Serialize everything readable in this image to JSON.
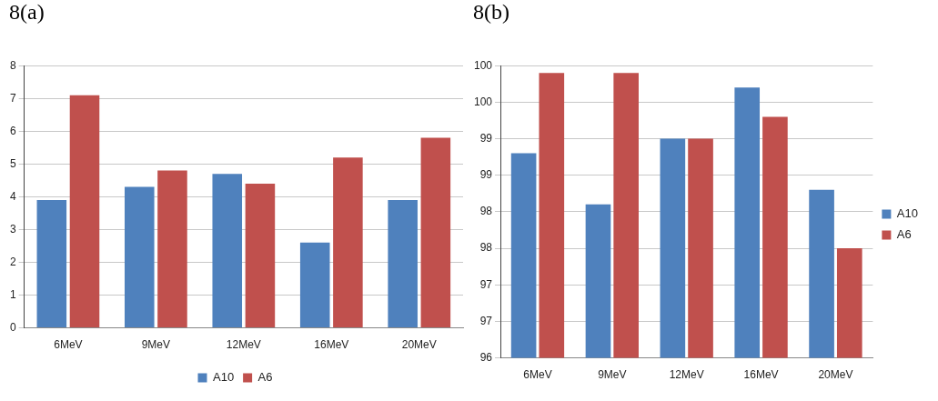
{
  "chart_data": [
    {
      "type": "bar",
      "title": "8(a)",
      "categories": [
        "6MeV",
        "9MeV",
        "12MeV",
        "16MeV",
        "20MeV"
      ],
      "series": [
        {
          "name": "A10",
          "color": "#4f81bd",
          "values": [
            3.9,
            4.3,
            4.7,
            2.6,
            3.9
          ]
        },
        {
          "name": "A6",
          "color": "#c0504d",
          "values": [
            7.1,
            4.8,
            4.4,
            5.2,
            5.8
          ]
        }
      ],
      "ylim": [
        0,
        8
      ],
      "yticks": [
        0,
        1,
        2,
        3,
        4,
        5,
        6,
        7,
        8
      ],
      "grid": "y",
      "legend": "bottom"
    },
    {
      "type": "bar",
      "title": "8(b)",
      "categories": [
        "6MeV",
        "9MeV",
        "12MeV",
        "16MeV",
        "20MeV"
      ],
      "series": [
        {
          "name": "A10",
          "color": "#4f81bd",
          "values": [
            98.8,
            98.1,
            99.0,
            99.7,
            98.3
          ]
        },
        {
          "name": "A6",
          "color": "#c0504d",
          "values": [
            99.9,
            99.9,
            99.0,
            99.3,
            97.5
          ]
        }
      ],
      "ylim": [
        96,
        100
      ],
      "yticks": [
        96,
        {
          "value": 96.5,
          "label": "97"
        },
        97,
        {
          "value": 97.5,
          "label": "98"
        },
        98,
        {
          "value": 98.5,
          "label": "99"
        },
        99,
        {
          "value": 99.5,
          "label": "100"
        },
        100
      ],
      "grid": "y",
      "legend": "right"
    }
  ]
}
